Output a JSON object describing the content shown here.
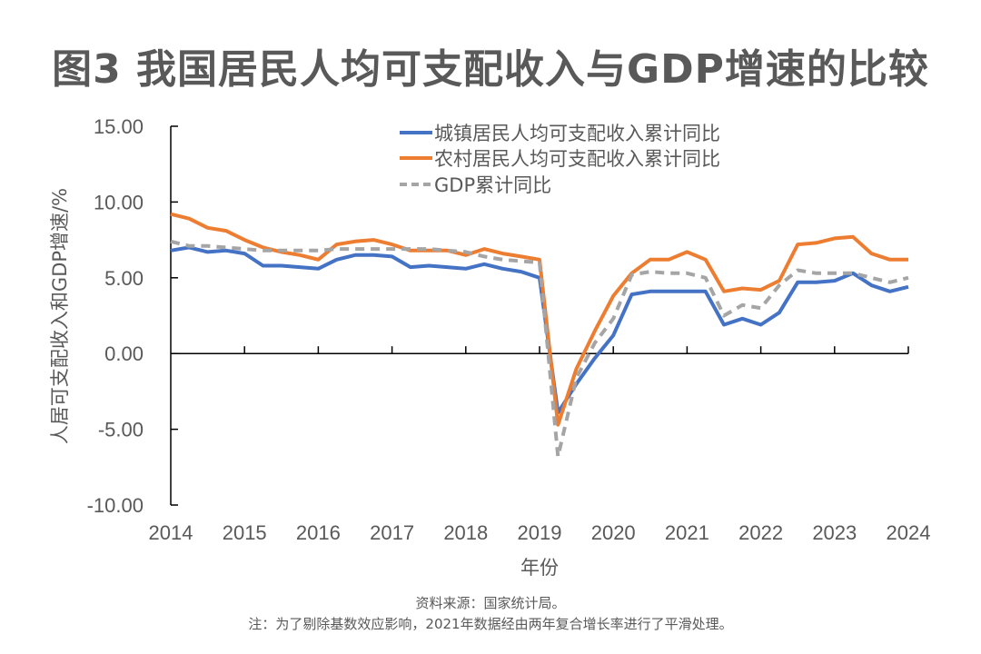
{
  "title": "图3 我国居民人均可支配收入与GDP增速的比较",
  "source": "资料来源：国家统计局。",
  "note": "注：为了剔除基数效应影响，2021年数据经由两年复合增长率进行了平滑处理。",
  "chart_data": {
    "type": "line",
    "title": "图3 我国居民人均可支配收入与GDP增速的比较",
    "xlabel": "年份",
    "ylabel": "人居可支配收入和GDP增速/%",
    "ylim": [
      -10,
      15
    ],
    "yticks": [
      "15.00",
      "10.00",
      "5.00",
      "0.00",
      "-5.00",
      "-10.00"
    ],
    "ytick_values": [
      15,
      10,
      5,
      0,
      -5,
      -10
    ],
    "xtick_labels": [
      "2014",
      "2015",
      "2016",
      "2017",
      "2018",
      "2019",
      "2020",
      "2021",
      "2022",
      "2023",
      "2024"
    ],
    "grid": false,
    "legend_position": "top-center",
    "x_note": "quarterly cumulative points, 4 per year starting 2014Q1",
    "series": [
      {
        "name": "城镇居民人均可支配收入累计同比",
        "color": "#4472C4",
        "style": "solid",
        "values": [
          6.8,
          7.0,
          6.7,
          6.8,
          6.6,
          5.8,
          5.8,
          5.7,
          5.6,
          6.2,
          6.5,
          6.5,
          6.4,
          5.7,
          5.8,
          5.7,
          5.6,
          5.9,
          5.6,
          5.4,
          5.0,
          -3.9,
          -2.0,
          -0.3,
          1.2,
          3.9,
          4.1,
          4.1,
          4.1,
          4.1,
          1.9,
          2.3,
          1.9,
          2.7,
          4.7,
          4.7,
          4.8,
          5.3,
          4.5,
          4.1,
          4.4
        ]
      },
      {
        "name": "农村居民人均可支配收入累计同比",
        "color": "#ED7D31",
        "style": "solid",
        "values": [
          9.2,
          8.9,
          8.3,
          8.1,
          7.5,
          7.0,
          6.7,
          6.5,
          6.2,
          7.2,
          7.4,
          7.5,
          7.2,
          6.8,
          6.8,
          6.8,
          6.5,
          6.9,
          6.6,
          6.4,
          6.2,
          -4.7,
          -1.0,
          1.5,
          3.8,
          5.3,
          6.2,
          6.2,
          6.7,
          6.2,
          4.1,
          4.3,
          4.2,
          4.8,
          7.2,
          7.3,
          7.6,
          7.7,
          6.6,
          6.2,
          6.2
        ]
      },
      {
        "name": "GDP累计同比",
        "color": "#A5A5A5",
        "style": "dashed",
        "values": [
          7.4,
          7.1,
          7.1,
          7.0,
          6.9,
          6.8,
          6.8,
          6.8,
          6.8,
          6.9,
          6.9,
          6.9,
          6.9,
          6.9,
          6.9,
          6.8,
          6.7,
          6.4,
          6.2,
          6.1,
          6.0,
          -6.8,
          -1.6,
          0.7,
          2.3,
          5.2,
          5.4,
          5.3,
          5.3,
          5.0,
          2.5,
          3.2,
          3.0,
          4.5,
          5.5,
          5.3,
          5.3,
          5.3,
          5.0,
          4.7,
          5.0
        ]
      }
    ]
  }
}
